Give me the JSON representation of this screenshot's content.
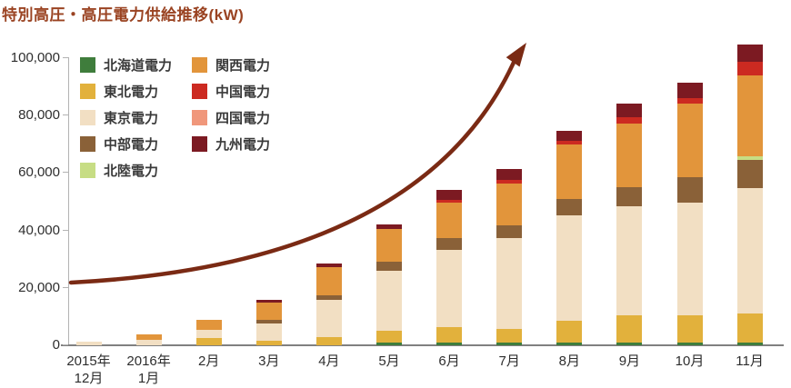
{
  "title": "特別高圧・高圧電力供給推移(kW)",
  "colors": {
    "title": "#9a4322",
    "arrow": "#7a2a14",
    "axis_line": "#b3b3b3",
    "baseline": "#808080",
    "label_text": "#2e2e2e"
  },
  "chart_data": {
    "type": "bar",
    "stacked": true,
    "title": "特別高圧・高圧電力供給推移(kW)",
    "unit": "kW",
    "ylim": [
      0,
      100000
    ],
    "yticks": [
      0,
      20000,
      40000,
      60000,
      80000,
      100000
    ],
    "ytick_labels": [
      "0",
      "20,000",
      "40,000",
      "60,000",
      "80,000",
      "100,000"
    ],
    "grid": false,
    "legend_position": "upper-left",
    "annotation": "upward curved growth arrow",
    "categories": [
      [
        "2015年",
        "12月"
      ],
      [
        "2016年",
        "1月"
      ],
      [
        "2月"
      ],
      [
        "3月"
      ],
      [
        "4月"
      ],
      [
        "5月"
      ],
      [
        "6月"
      ],
      [
        "7月"
      ],
      [
        "8月"
      ],
      [
        "9月"
      ],
      [
        "10月"
      ],
      [
        "11月"
      ]
    ],
    "series": [
      {
        "name": "北海道電力",
        "color": "#3f7d3c",
        "values": [
          0,
          0,
          0,
          0,
          0,
          800,
          800,
          800,
          800,
          800,
          800,
          900
        ]
      },
      {
        "name": "東北電力",
        "color": "#e2b13c",
        "values": [
          0,
          0,
          2500,
          1700,
          3000,
          4200,
          5400,
          4800,
          7800,
          9500,
          9700,
          10300
        ]
      },
      {
        "name": "東京電力",
        "color": "#f2dfc3",
        "values": [
          1300,
          2000,
          3000,
          5900,
          12700,
          20800,
          27000,
          31900,
          36800,
          38200,
          39100,
          43600
        ]
      },
      {
        "name": "中部電力",
        "color": "#8a6138",
        "values": [
          0,
          0,
          0,
          1300,
          1600,
          3200,
          4100,
          4300,
          5500,
          6600,
          9000,
          9700
        ]
      },
      {
        "name": "北陸電力",
        "color": "#c7dd84",
        "values": [
          0,
          0,
          0,
          0,
          0,
          0,
          0,
          0,
          0,
          0,
          0,
          1400
        ]
      },
      {
        "name": "関西電力",
        "color": "#e2953b",
        "values": [
          0,
          1900,
          3400,
          6000,
          9800,
          11600,
          12300,
          14700,
          19000,
          22000,
          25600,
          28200
        ]
      },
      {
        "name": "中国電力",
        "color": "#cc2a21",
        "values": [
          0,
          0,
          0,
          0,
          0,
          0,
          1000,
          1100,
          1400,
          2300,
          2000,
          4600
        ]
      },
      {
        "name": "四国電力",
        "color": "#f0977b",
        "values": [
          0,
          0,
          0,
          0,
          0,
          0,
          0,
          0,
          0,
          0,
          0,
          0
        ]
      },
      {
        "name": "九州電力",
        "color": "#7c1a22",
        "values": [
          0,
          0,
          0,
          900,
          1300,
          1400,
          3500,
          3900,
          3400,
          4900,
          5200,
          6000
        ]
      }
    ],
    "legend_columns": [
      [
        "北海道電力",
        "東北電力",
        "東京電力",
        "中部電力",
        "北陸電力"
      ],
      [
        "関西電力",
        "中国電力",
        "四国電力",
        "九州電力"
      ]
    ]
  }
}
